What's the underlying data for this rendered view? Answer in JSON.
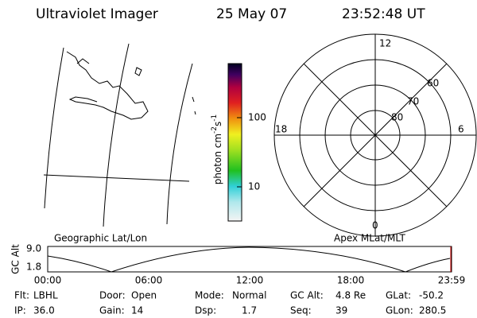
{
  "header": {
    "title": "Ultraviolet Imager",
    "date": "25 May 07",
    "time": "23:52:48 UT"
  },
  "colorbar": {
    "label": {
      "unit1": "photon cm",
      "exp1": "-2",
      "unit2": "s",
      "exp2": "-1"
    },
    "ticks": [
      "100",
      "10"
    ]
  },
  "polar": {
    "mlt_labels": {
      "top": "12",
      "right": "6",
      "bottom": "0",
      "left": "18"
    },
    "lat_labels": [
      "60",
      "70",
      "80"
    ]
  },
  "timeline": {
    "left_title": "Geographic Lat/Lon",
    "right_title": "Apex MLat/MLT",
    "y_label": "GC Alt",
    "y_ticks": [
      "9.0",
      "1.8"
    ],
    "x_ticks": [
      "00:00",
      "06:00",
      "12:00",
      "18:00",
      "23:59"
    ]
  },
  "footer": [
    [
      {
        "label": "Flt:",
        "value": "LBHL"
      },
      {
        "label": "Door:",
        "value": "Open"
      },
      {
        "label": "Mode:",
        "value": "Normal"
      },
      {
        "label": "GC Alt:",
        "value": "4.8 Re"
      },
      {
        "label": "GLat:",
        "value": "-50.2"
      }
    ],
    [
      {
        "label": "IP:",
        "value": "36.0"
      },
      {
        "label": "Gain:",
        "value": "14"
      },
      {
        "label": "Dsp:",
        "value": "1.7"
      },
      {
        "label": "Seq:",
        "value": "39"
      },
      {
        "label": "GLon:",
        "value": "280.5"
      }
    ]
  ]
}
